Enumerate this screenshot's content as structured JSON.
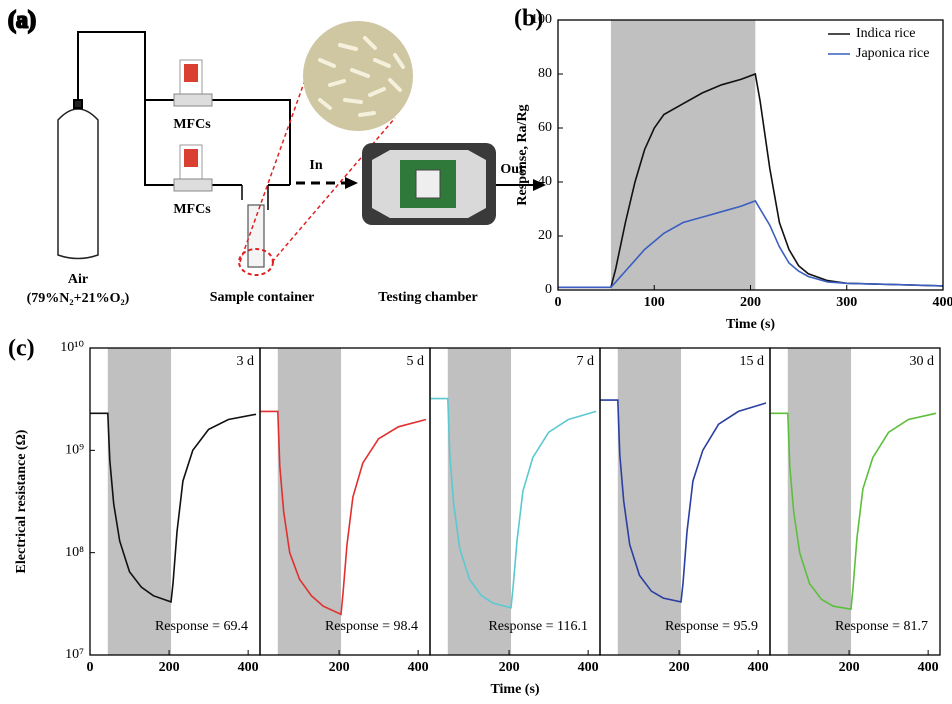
{
  "diagram": {
    "panel_label": "(a)",
    "mfc_top": "MFCs",
    "mfc_bottom": "MFCs",
    "in_label": "In",
    "out_label": "Out",
    "air": "Air",
    "air_composition": "(79%N₂+21%O₂)",
    "sample_container": "Sample container",
    "testing_chamber": "Testing chamber"
  },
  "chart_data": [
    {
      "type": "line",
      "panel_label": "(b)",
      "xlabel": "Time (s)",
      "ylabel": "Response, Ra/Rg",
      "xlim": [
        0,
        400
      ],
      "xticks": [
        0,
        100,
        200,
        300,
        400
      ],
      "ylim": [
        0,
        100
      ],
      "yticks": [
        0,
        20,
        40,
        60,
        80,
        100
      ],
      "shade": [
        55,
        205
      ],
      "shade_color": "#c0c0c0",
      "legend": "upper right",
      "x": [
        0,
        55,
        60,
        70,
        80,
        90,
        100,
        110,
        130,
        150,
        170,
        190,
        205,
        210,
        220,
        230,
        240,
        250,
        260,
        280,
        300,
        350,
        400
      ],
      "series": [
        {
          "name": "Indica rice",
          "color": "#111111",
          "values": [
            1,
            1,
            8,
            25,
            40,
            52,
            60,
            65,
            69,
            73,
            76,
            78,
            80,
            70,
            45,
            25,
            15,
            9,
            6,
            3.5,
            2.5,
            2,
            1.5
          ]
        },
        {
          "name": "Japonica rice",
          "color": "#3a5fc0",
          "values": [
            1,
            1,
            3,
            7,
            11,
            15,
            18,
            21,
            25,
            27,
            29,
            31,
            33,
            30,
            24,
            16,
            10,
            7,
            5,
            3,
            2.5,
            2,
            1.5
          ]
        }
      ]
    },
    {
      "type": "line",
      "panel_label": "(c)",
      "ylabel": "Electrical resistance (Ω)",
      "yscale": "log",
      "xlim": [
        0,
        430
      ],
      "xticks": [
        0,
        200,
        400
      ],
      "ylim": [
        10000000,
        10000000000
      ],
      "yticks": [
        {
          "value": 10000000,
          "label": "10⁷"
        },
        {
          "value": 100000000,
          "label": "10⁸"
        },
        {
          "value": 1000000000,
          "label": "10⁹"
        },
        {
          "value": 10000000000,
          "label": "10¹⁰"
        }
      ],
      "shade": [
        45,
        205
      ],
      "shade_color": "#c0c0c0",
      "day_label": "3 d",
      "response_label": "Response = 69.4",
      "x": [
        0,
        45,
        50,
        60,
        75,
        100,
        130,
        160,
        205,
        210,
        220,
        235,
        260,
        300,
        350,
        420
      ],
      "series": [
        {
          "color": "#111111",
          "values": [
            2300000000,
            2300000000,
            800000000,
            300000000,
            130000000,
            65000000,
            46000000,
            38000000,
            33000000,
            50000000,
            160000000,
            500000000,
            1000000000,
            1600000000,
            2000000000,
            2250000000
          ]
        }
      ]
    },
    {
      "type": "line",
      "yscale": "log",
      "xlim": [
        0,
        430
      ],
      "xticks": [
        200,
        400
      ],
      "ylim": [
        10000000,
        10000000000
      ],
      "shade": [
        45,
        205
      ],
      "shade_color": "#c0c0c0",
      "day_label": "5 d",
      "response_label": "Response = 98.4",
      "x": [
        0,
        45,
        50,
        60,
        75,
        100,
        130,
        160,
        205,
        210,
        220,
        235,
        260,
        300,
        350,
        420
      ],
      "series": [
        {
          "color": "#e03030",
          "values": [
            2400000000,
            2400000000,
            700000000,
            250000000,
            100000000,
            55000000,
            38000000,
            30000000,
            25000000,
            40000000,
            120000000,
            350000000,
            750000000,
            1300000000,
            1700000000,
            2000000000
          ]
        }
      ]
    },
    {
      "type": "line",
      "yscale": "log",
      "xlim": [
        0,
        430
      ],
      "xticks": [
        200,
        400
      ],
      "ylim": [
        10000000,
        10000000000
      ],
      "shade": [
        45,
        205
      ],
      "shade_color": "#c0c0c0",
      "xlabel": "Time (s)",
      "day_label": "7 d",
      "response_label": "Response = 116.1",
      "x": [
        0,
        45,
        50,
        60,
        75,
        100,
        130,
        160,
        205,
        210,
        220,
        235,
        260,
        300,
        350,
        420
      ],
      "series": [
        {
          "color": "#5cc8d0",
          "values": [
            3200000000,
            3200000000,
            900000000,
            300000000,
            110000000,
            55000000,
            38000000,
            32000000,
            29000000,
            45000000,
            130000000,
            400000000,
            850000000,
            1500000000,
            2000000000,
            2400000000
          ]
        }
      ]
    },
    {
      "type": "line",
      "yscale": "log",
      "xlim": [
        0,
        430
      ],
      "xticks": [
        200,
        400
      ],
      "ylim": [
        10000000,
        10000000000
      ],
      "shade": [
        45,
        205
      ],
      "shade_color": "#c0c0c0",
      "day_label": "15 d",
      "response_label": "Response = 95.9",
      "x": [
        0,
        45,
        50,
        60,
        75,
        100,
        130,
        160,
        205,
        210,
        220,
        235,
        260,
        300,
        350,
        420
      ],
      "series": [
        {
          "color": "#2a3fa0",
          "values": [
            3100000000,
            3100000000,
            900000000,
            320000000,
            120000000,
            60000000,
            42000000,
            36000000,
            33000000,
            50000000,
            160000000,
            500000000,
            1000000000,
            1800000000,
            2400000000,
            2900000000
          ]
        }
      ]
    },
    {
      "type": "line",
      "yscale": "log",
      "xlim": [
        0,
        430
      ],
      "xticks": [
        200,
        400
      ],
      "ylim": [
        10000000,
        10000000000
      ],
      "shade": [
        45,
        205
      ],
      "shade_color": "#c0c0c0",
      "day_label": "30 d",
      "response_label": "Response = 81.7",
      "x": [
        0,
        45,
        50,
        60,
        75,
        100,
        130,
        160,
        205,
        210,
        220,
        235,
        260,
        300,
        350,
        420
      ],
      "series": [
        {
          "color": "#5cbf3c",
          "values": [
            2300000000,
            2300000000,
            700000000,
            250000000,
            100000000,
            50000000,
            35000000,
            30000000,
            28000000,
            45000000,
            140000000,
            420000000,
            850000000,
            1500000000,
            2000000000,
            2300000000
          ]
        }
      ]
    }
  ]
}
